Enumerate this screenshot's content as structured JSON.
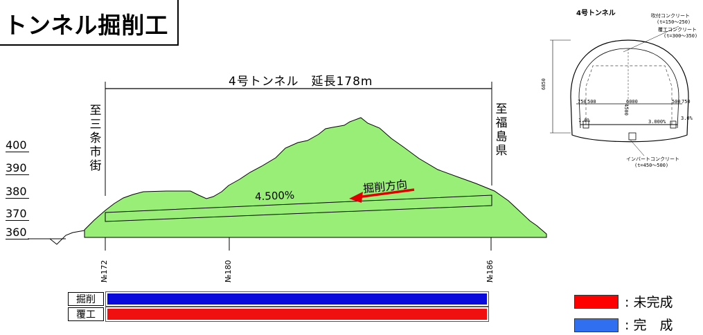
{
  "title": "トンネル掘削工",
  "profile": {
    "tunnel_label": "4号トンネル　延長178m",
    "left_direction": "至三条市街",
    "right_direction": "至福島県",
    "grade_label": "4.500%",
    "dig_direction_label": "掘削方向",
    "elevations": [
      "400",
      "390",
      "380",
      "370",
      "360"
    ],
    "stations": [
      "№172",
      "№180",
      "№186"
    ]
  },
  "progress": {
    "rows": [
      {
        "label": "掘削",
        "color": "#0a0adc",
        "status": "完成"
      },
      {
        "label": "覆工",
        "color": "#f01010",
        "status": "未完成"
      }
    ]
  },
  "legend": {
    "items": [
      {
        "label": ": 未完成",
        "color": "#ff0000"
      },
      {
        "label": ": 完　成",
        "color": "#2f6ff0"
      }
    ]
  },
  "section": {
    "title": "4号トンネル",
    "shotcrete": "吹付コンクリート",
    "shotcrete_t": "(t=150～250)",
    "lining": "覆工コンクリート",
    "lining_t": "(t=300～350)",
    "invert": "インバートコンクリート",
    "invert_t": "(t=450～500)",
    "height_total": "6850",
    "height_inner": "4500",
    "width_left": "750",
    "width_left2": "500",
    "width_center": "6000",
    "width_right": "500",
    "width_right2": "750",
    "cross_slope_left": "1.0%",
    "cross_slope": "3.000%",
    "cross_slope_right": "3.0%"
  }
}
